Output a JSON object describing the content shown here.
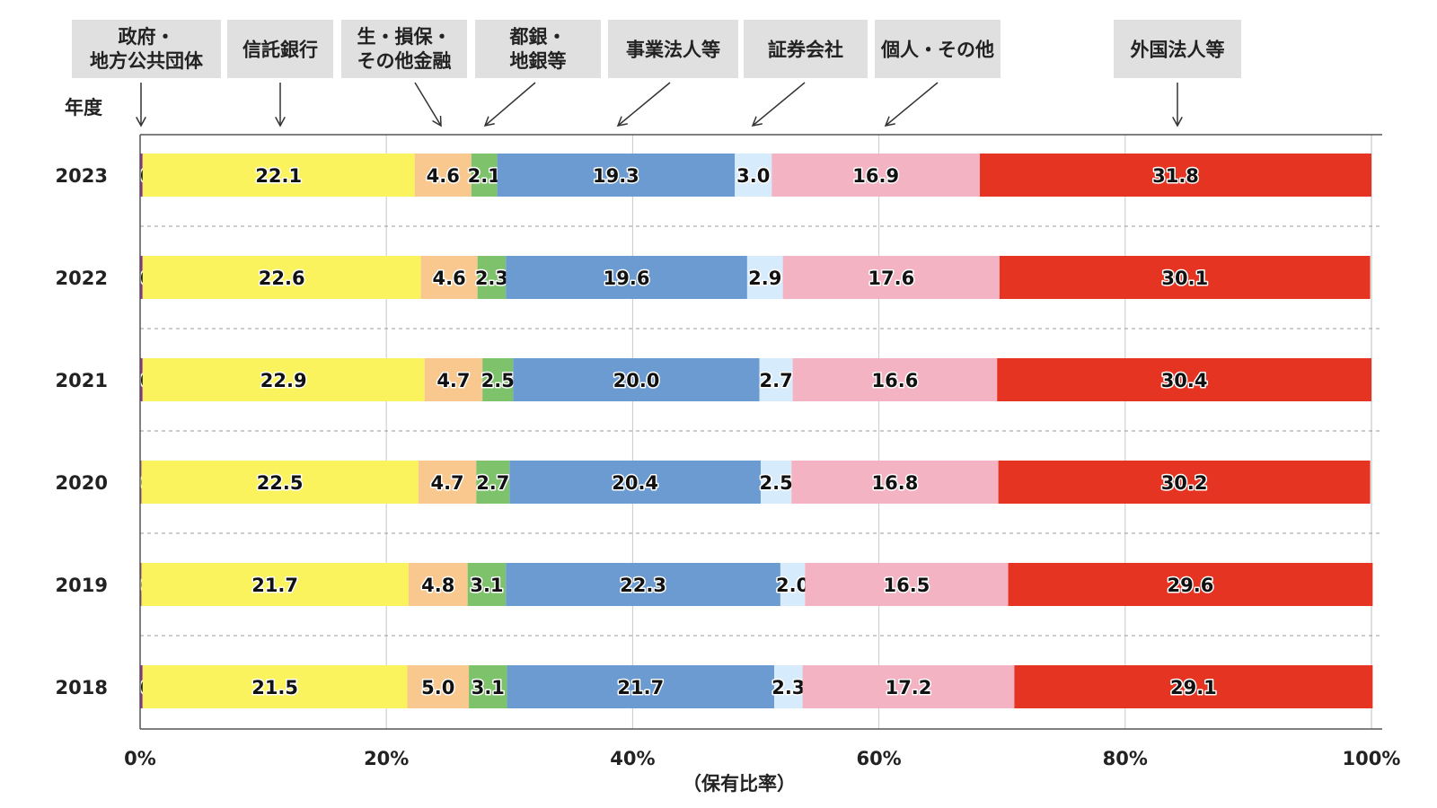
{
  "chart_data": {
    "type": "bar",
    "orientation": "horizontal",
    "stacked": true,
    "normalized": true,
    "title": "",
    "xlabel": "（保有比率）",
    "ylabel": "年度",
    "xlim": [
      0,
      100
    ],
    "x_ticks": [
      "0%",
      "20%",
      "40%",
      "60%",
      "80%",
      "100%"
    ],
    "grid": true,
    "categories": [
      "2023",
      "2022",
      "2021",
      "2020",
      "2019",
      "2018"
    ],
    "series": [
      {
        "name": "政府・地方公共団体",
        "label_lines": [
          "政府・",
          "地方公共団体"
        ],
        "color": "#8e2d8a",
        "values": [
          0.2,
          0.2,
          0.2,
          0.1,
          0.1,
          0.2
        ]
      },
      {
        "name": "信託銀行",
        "label_lines": [
          "信託銀行"
        ],
        "color": "#fbf35d",
        "values": [
          22.1,
          22.6,
          22.9,
          22.5,
          21.7,
          21.5
        ]
      },
      {
        "name": "生・損保・その他金融",
        "label_lines": [
          "生・損保・",
          "その他金融"
        ],
        "color": "#f9c88f",
        "values": [
          4.6,
          4.6,
          4.7,
          4.7,
          4.8,
          5.0
        ]
      },
      {
        "name": "都銀・地銀等",
        "label_lines": [
          "都銀・",
          "地銀等"
        ],
        "color": "#7ec36c",
        "values": [
          2.1,
          2.3,
          2.5,
          2.7,
          3.1,
          3.1
        ]
      },
      {
        "name": "事業法人等",
        "label_lines": [
          "事業法人等"
        ],
        "color": "#6b9bd1",
        "values": [
          19.3,
          19.6,
          20.0,
          20.4,
          22.3,
          21.7
        ]
      },
      {
        "name": "証券会社",
        "label_lines": [
          "証券会社"
        ],
        "color": "#d6ebfb",
        "values": [
          3.0,
          2.9,
          2.7,
          2.5,
          2.0,
          2.3
        ]
      },
      {
        "name": "個人・その他",
        "label_lines": [
          "個人・その他"
        ],
        "color": "#f4b3c2",
        "values": [
          16.9,
          17.6,
          16.6,
          16.8,
          16.5,
          17.2
        ]
      },
      {
        "name": "外国法人等",
        "label_lines": [
          "外国法人等"
        ],
        "color": "#e63422",
        "values": [
          31.8,
          30.1,
          30.4,
          30.2,
          29.6,
          29.1
        ]
      }
    ]
  }
}
